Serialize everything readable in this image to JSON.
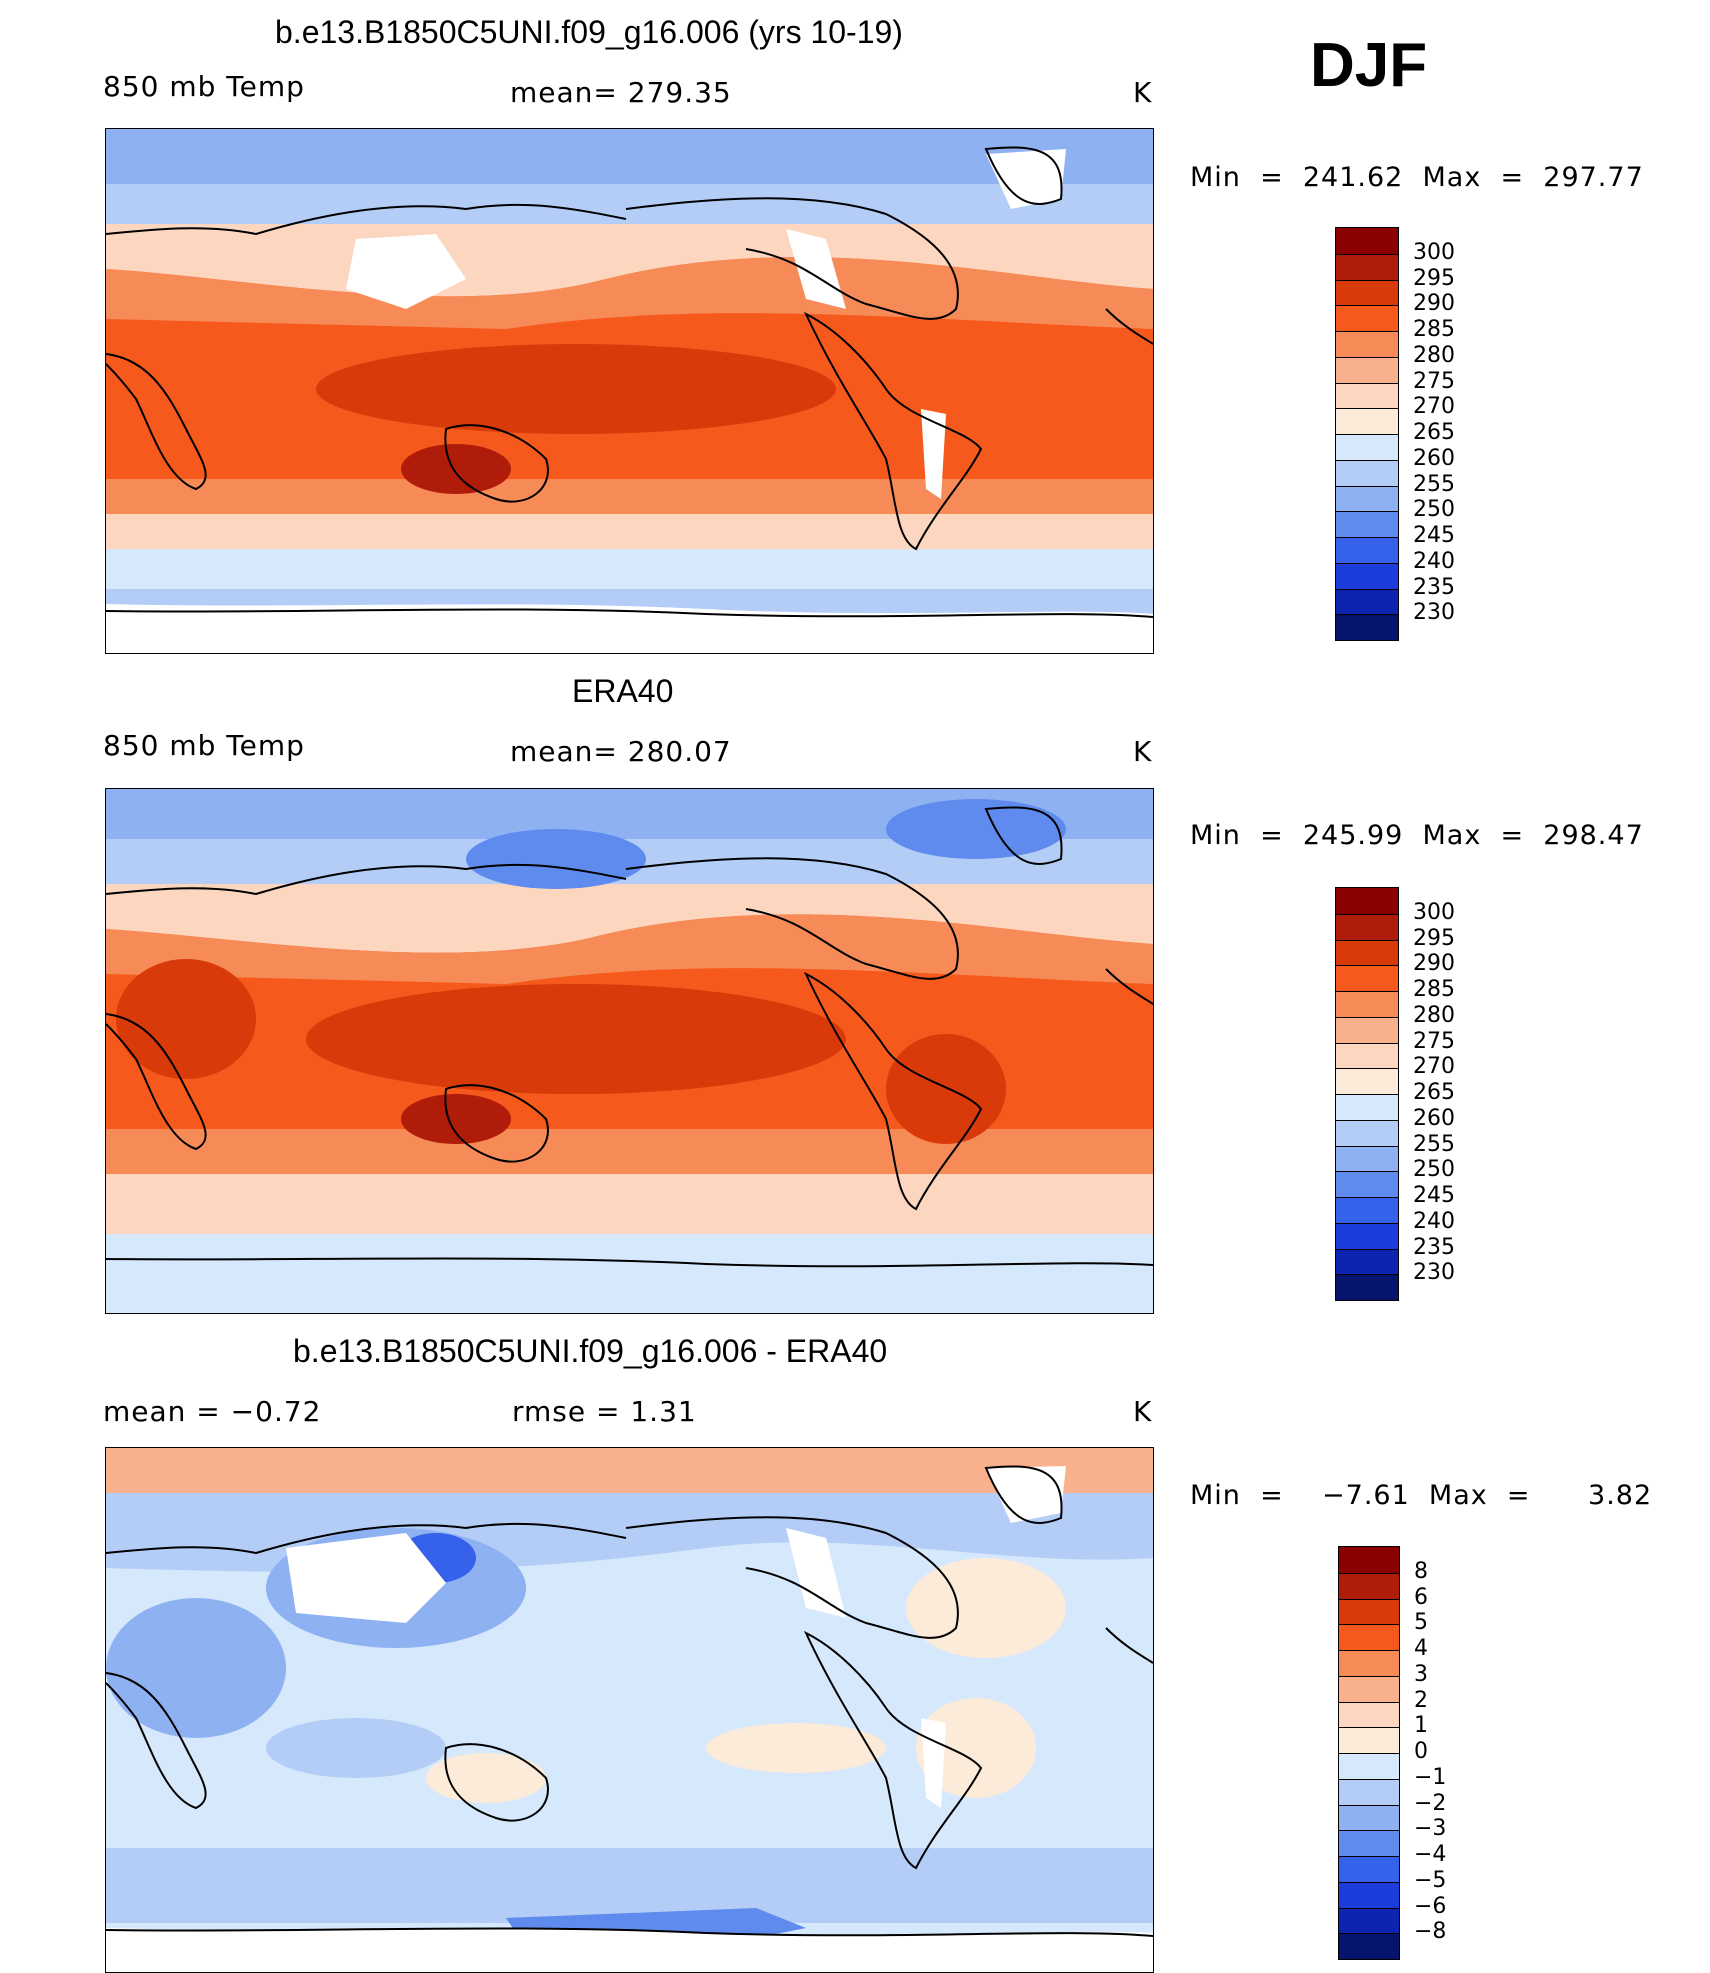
{
  "season": "DJF",
  "panels": [
    {
      "title": "b.e13.B1850C5UNI.f09_g16.006 (yrs 10-19)",
      "left_label": "850 mb Temp",
      "center_label": "mean=  279.35",
      "units": "K",
      "minmax": "Min  =  241.62  Max  =  297.77",
      "colorbar_ticks": [
        "300",
        "295",
        "290",
        "285",
        "280",
        "275",
        "270",
        "265",
        "260",
        "255",
        "250",
        "245",
        "240",
        "235",
        "230"
      ],
      "colorbar_colors": [
        "#8b0000",
        "#b01c0a",
        "#d93a0a",
        "#f55a1c",
        "#f78b58",
        "#f9b08c",
        "#fcd6bf",
        "#fdebd9",
        "#d6e8fb",
        "#b3cdf7",
        "#8eb1f2",
        "#5f8bee",
        "#3661ea",
        "#1c3ddb",
        "#0d24b0",
        "#07146e"
      ]
    },
    {
      "title": "ERA40",
      "left_label": "850 mb Temp",
      "center_label": "mean=  280.07",
      "units": "K",
      "minmax": "Min  =  245.99  Max  =  298.47",
      "colorbar_ticks": [
        "300",
        "295",
        "290",
        "285",
        "280",
        "275",
        "270",
        "265",
        "260",
        "255",
        "250",
        "245",
        "240",
        "235",
        "230"
      ],
      "colorbar_colors": [
        "#8b0000",
        "#b01c0a",
        "#d93a0a",
        "#f55a1c",
        "#f78b58",
        "#f9b08c",
        "#fcd6bf",
        "#fdebd9",
        "#d6e8fb",
        "#b3cdf7",
        "#8eb1f2",
        "#5f8bee",
        "#3661ea",
        "#1c3ddb",
        "#0d24b0",
        "#07146e"
      ]
    },
    {
      "title": "b.e13.B1850C5UNI.f09_g16.006 - ERA40",
      "left_label": "mean  =    −0.72",
      "center_label": "rmse  =     1.31",
      "units": "K",
      "minmax": "Min  =    −7.61  Max  =      3.82",
      "colorbar_ticks": [
        "8",
        "6",
        "5",
        "4",
        "3",
        "2",
        "1",
        "0",
        "−1",
        "−2",
        "−3",
        "−4",
        "−5",
        "−6",
        "−8"
      ],
      "colorbar_colors": [
        "#8b0000",
        "#b01c0a",
        "#d93a0a",
        "#f55a1c",
        "#f78b58",
        "#f9b08c",
        "#fcd6bf",
        "#fdebd9",
        "#d6e8fb",
        "#b3cdf7",
        "#8eb1f2",
        "#5f8bee",
        "#3661ea",
        "#1c3ddb",
        "#0d24b0",
        "#07146e"
      ]
    }
  ]
}
